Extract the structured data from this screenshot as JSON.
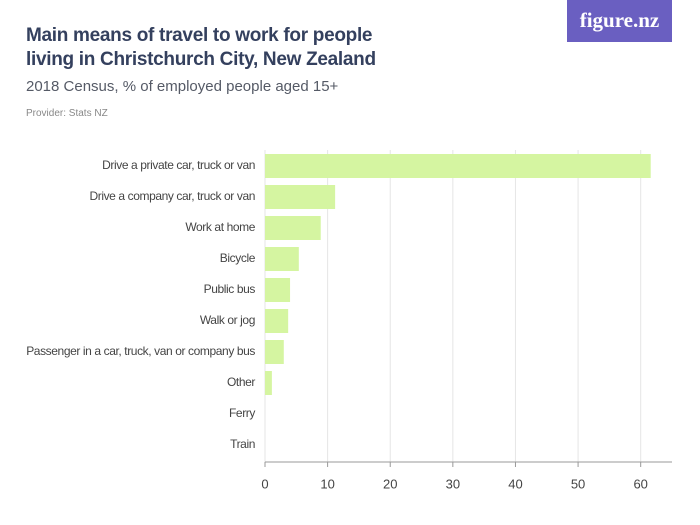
{
  "logo": "figure.nz",
  "chart_data": {
    "type": "bar",
    "orientation": "horizontal",
    "title": "Main means of travel to work for people living in Christchurch City, New Zealand",
    "subtitle": "2018 Census, % of employed people aged 15+",
    "source": "Provider: Stats NZ",
    "categories": [
      "Drive a private car, truck or van",
      "Drive a company car, truck or van",
      "Work at home",
      "Bicycle",
      "Public bus",
      "Walk or jog",
      "Passenger in a car, truck, van or company bus",
      "Other",
      "Ferry",
      "Train"
    ],
    "values": [
      61.6,
      11.2,
      8.9,
      5.4,
      4.0,
      3.7,
      3.0,
      1.1,
      0,
      0
    ],
    "color": "#d5f5a1",
    "xlim": [
      0,
      65
    ],
    "xticks": [
      0,
      10,
      20,
      30,
      40,
      50,
      60
    ],
    "grid": true
  }
}
